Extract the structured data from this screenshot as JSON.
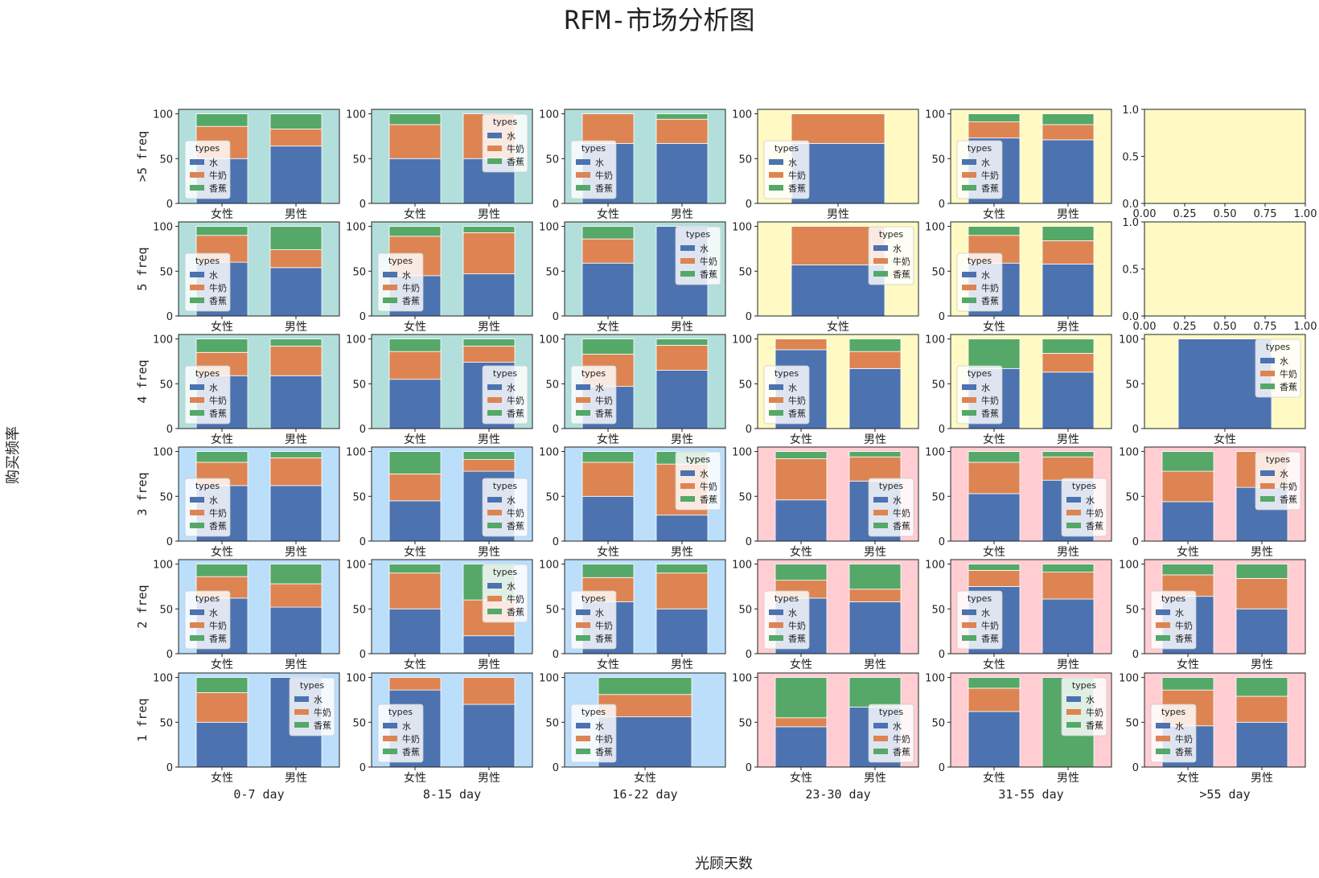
{
  "figure": {
    "title": "RFM-市场分析图",
    "xlabel": "光顾天数",
    "ylabel": "购买频率"
  },
  "chart_data": {
    "type": "bar",
    "stacked": true,
    "series_names": [
      "水",
      "牛奶",
      "香蕉"
    ],
    "series_colors": [
      "#4c72b0",
      "#dd8452",
      "#55a868"
    ],
    "legend_title": "types",
    "row_labels": [
      ">5 freq",
      "5 freq",
      "4 freq",
      "3 freq",
      "2 freq",
      "1 freq"
    ],
    "col_labels": [
      "0-7 day",
      "8-15 day",
      "16-22 day",
      "23-30 day",
      "31-55 day",
      ">55 day"
    ],
    "panel_colors": {
      "teal": "#b2dfdb",
      "yellow": "#fff9c4",
      "blue": "#bbdefb",
      "pink": "#ffcdd2"
    },
    "yticks": [
      0,
      50,
      100
    ],
    "ylim": [
      0,
      105
    ],
    "empty_ticks": [
      "0.00",
      "0.25",
      "0.50",
      "0.75",
      "1.00"
    ],
    "empty_yticks": [
      "0.0",
      "0.5",
      "1.0"
    ],
    "panels": [
      [
        {
          "bg": "teal",
          "cats": [
            "女性",
            "男性"
          ],
          "values": [
            [
              50,
              36,
              14
            ],
            [
              64,
              19,
              17
            ]
          ],
          "legend": "lower-left"
        },
        {
          "bg": "teal",
          "cats": [
            "女性",
            "男性"
          ],
          "values": [
            [
              50,
              38,
              12
            ],
            [
              50,
              50,
              0
            ]
          ],
          "legend": "upper-right"
        },
        {
          "bg": "teal",
          "cats": [
            "女性",
            "男性"
          ],
          "values": [
            [
              67,
              33,
              0
            ],
            [
              67,
              27,
              6
            ]
          ],
          "legend": "lower-left"
        },
        {
          "bg": "yellow",
          "cats": [
            "男性"
          ],
          "values": [
            [
              67,
              33,
              0
            ]
          ],
          "legend": "lower-left"
        },
        {
          "bg": "yellow",
          "cats": [
            "女性",
            "男性"
          ],
          "values": [
            [
              73,
              18,
              9
            ],
            [
              71,
              17,
              12
            ]
          ],
          "legend": "lower-left"
        },
        {
          "bg": "yellow",
          "empty": true
        }
      ],
      [
        {
          "bg": "teal",
          "cats": [
            "女性",
            "男性"
          ],
          "values": [
            [
              60,
              30,
              10
            ],
            [
              54,
              20,
              26
            ]
          ],
          "legend": "lower-left"
        },
        {
          "bg": "teal",
          "cats": [
            "女性",
            "男性"
          ],
          "values": [
            [
              45,
              44,
              11
            ],
            [
              47,
              46,
              7
            ]
          ],
          "legend": "lower-left"
        },
        {
          "bg": "teal",
          "cats": [
            "女性",
            "男性"
          ],
          "values": [
            [
              59,
              27,
              14
            ],
            [
              100,
              0,
              0
            ]
          ],
          "legend": "upper-right"
        },
        {
          "bg": "yellow",
          "cats": [
            "女性"
          ],
          "values": [
            [
              57,
              43,
              0
            ]
          ],
          "legend": "upper-right"
        },
        {
          "bg": "yellow",
          "cats": [
            "女性",
            "男性"
          ],
          "values": [
            [
              59,
              31,
              10
            ],
            [
              58,
              26,
              16
            ]
          ],
          "legend": "lower-left"
        },
        {
          "bg": "yellow",
          "empty": true
        }
      ],
      [
        {
          "bg": "teal",
          "cats": [
            "女性",
            "男性"
          ],
          "values": [
            [
              59,
              26,
              15
            ],
            [
              59,
              33,
              8
            ]
          ],
          "legend": "lower-left"
        },
        {
          "bg": "teal",
          "cats": [
            "女性",
            "男性"
          ],
          "values": [
            [
              55,
              31,
              14
            ],
            [
              74,
              18,
              8
            ]
          ],
          "legend": "lower-right"
        },
        {
          "bg": "teal",
          "cats": [
            "女性",
            "男性"
          ],
          "values": [
            [
              47,
              36,
              17
            ],
            [
              65,
              28,
              7
            ]
          ],
          "legend": "lower-left"
        },
        {
          "bg": "yellow",
          "cats": [
            "女性",
            "男性"
          ],
          "values": [
            [
              88,
              12,
              0
            ],
            [
              67,
              19,
              14
            ]
          ],
          "legend": "lower-left"
        },
        {
          "bg": "yellow",
          "cats": [
            "女性",
            "男性"
          ],
          "values": [
            [
              67,
              0,
              33
            ],
            [
              63,
              21,
              16
            ]
          ],
          "legend": "lower-left"
        },
        {
          "bg": "yellow",
          "cats": [
            "女性"
          ],
          "values": [
            [
              100,
              0,
              0
            ]
          ],
          "legend": "upper-right"
        }
      ],
      [
        {
          "bg": "blue",
          "cats": [
            "女性",
            "男性"
          ],
          "values": [
            [
              62,
              26,
              12
            ],
            [
              62,
              31,
              7
            ]
          ],
          "legend": "lower-left"
        },
        {
          "bg": "blue",
          "cats": [
            "女性",
            "男性"
          ],
          "values": [
            [
              45,
              30,
              25
            ],
            [
              78,
              13,
              9
            ]
          ],
          "legend": "lower-right"
        },
        {
          "bg": "blue",
          "cats": [
            "女性",
            "男性"
          ],
          "values": [
            [
              50,
              38,
              12
            ],
            [
              29,
              57,
              14
            ]
          ],
          "legend": "upper-right"
        },
        {
          "bg": "pink",
          "cats": [
            "女性",
            "男性"
          ],
          "values": [
            [
              46,
              46,
              8
            ],
            [
              67,
              27,
              6
            ]
          ],
          "legend": "lower-right"
        },
        {
          "bg": "pink",
          "cats": [
            "女性",
            "男性"
          ],
          "values": [
            [
              53,
              35,
              12
            ],
            [
              68,
              26,
              6
            ]
          ],
          "legend": "lower-right"
        },
        {
          "bg": "pink",
          "cats": [
            "女性",
            "男性"
          ],
          "values": [
            [
              44,
              34,
              22
            ],
            [
              60,
              40,
              0
            ]
          ],
          "legend": "upper-right"
        }
      ],
      [
        {
          "bg": "blue",
          "cats": [
            "女性",
            "男性"
          ],
          "values": [
            [
              62,
              24,
              14
            ],
            [
              52,
              26,
              22
            ]
          ],
          "legend": "lower-left"
        },
        {
          "bg": "blue",
          "cats": [
            "女性",
            "男性"
          ],
          "values": [
            [
              50,
              40,
              10
            ],
            [
              20,
              40,
              40
            ]
          ],
          "legend": "upper-right"
        },
        {
          "bg": "blue",
          "cats": [
            "女性",
            "男性"
          ],
          "values": [
            [
              58,
              27,
              15
            ],
            [
              50,
              40,
              10
            ]
          ],
          "legend": "lower-left"
        },
        {
          "bg": "pink",
          "cats": [
            "女性",
            "男性"
          ],
          "values": [
            [
              62,
              20,
              18
            ],
            [
              58,
              14,
              28
            ]
          ],
          "legend": "lower-left"
        },
        {
          "bg": "pink",
          "cats": [
            "女性",
            "男性"
          ],
          "values": [
            [
              75,
              18,
              7
            ],
            [
              61,
              30,
              9
            ]
          ],
          "legend": "lower-left"
        },
        {
          "bg": "pink",
          "cats": [
            "女性",
            "男性"
          ],
          "values": [
            [
              64,
              24,
              12
            ],
            [
              50,
              34,
              16
            ]
          ],
          "legend": "lower-left"
        }
      ],
      [
        {
          "bg": "blue",
          "cats": [
            "女性",
            "男性"
          ],
          "values": [
            [
              50,
              33,
              17
            ],
            [
              100,
              0,
              0
            ]
          ],
          "legend": "upper-right"
        },
        {
          "bg": "blue",
          "cats": [
            "女性",
            "男性"
          ],
          "values": [
            [
              86,
              14,
              0
            ],
            [
              70,
              30,
              0
            ]
          ],
          "legend": "lower-left"
        },
        {
          "bg": "blue",
          "cats": [
            "女性"
          ],
          "values": [
            [
              56,
              25,
              19
            ]
          ],
          "legend": "lower-left"
        },
        {
          "bg": "pink",
          "cats": [
            "女性",
            "男性"
          ],
          "values": [
            [
              45,
              10,
              45
            ],
            [
              67,
              0,
              33
            ]
          ],
          "legend": "lower-right"
        },
        {
          "bg": "pink",
          "cats": [
            "女性",
            "男性"
          ],
          "values": [
            [
              62,
              26,
              12
            ],
            [
              0,
              0,
              100
            ]
          ],
          "legend": "upper-right"
        },
        {
          "bg": "pink",
          "cats": [
            "女性",
            "男性"
          ],
          "values": [
            [
              46,
              40,
              14
            ],
            [
              50,
              29,
              21
            ]
          ],
          "legend": "lower-left"
        }
      ]
    ]
  }
}
